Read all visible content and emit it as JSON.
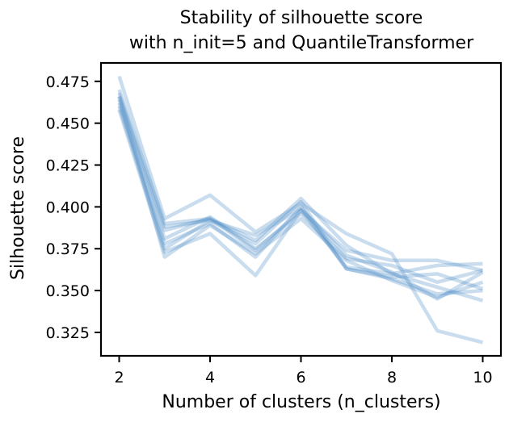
{
  "chart_data": {
    "type": "line",
    "title_lines": [
      "Stability of silhouette score",
      "with n_init=5 and QuantileTransformer"
    ],
    "xlabel": "Number of clusters (n_clusters)",
    "ylabel": "Silhouette score",
    "xlim": [
      1.6,
      10.4
    ],
    "ylim": [
      0.311,
      0.486
    ],
    "xticks": [
      2,
      4,
      6,
      8,
      10
    ],
    "yticks": [
      0.325,
      0.35,
      0.375,
      0.4,
      0.425,
      0.45,
      0.475
    ],
    "ytick_labels": [
      "0.325",
      "0.350",
      "0.375",
      "0.400",
      "0.425",
      "0.450",
      "0.475"
    ],
    "xtick_labels": [
      "2",
      "4",
      "6",
      "8",
      "10"
    ],
    "grid": false,
    "legend": "none",
    "line_color": "#4f8fc6",
    "line_opacity": 0.3,
    "x": [
      2,
      3,
      4,
      5,
      6,
      7,
      8,
      9,
      10
    ],
    "series": [
      {
        "values": [
          0.478,
          0.393,
          0.407,
          0.385,
          0.402,
          0.384,
          0.372,
          0.326,
          0.319
        ]
      },
      {
        "values": [
          0.47,
          0.39,
          0.393,
          0.38,
          0.405,
          0.377,
          0.36,
          0.365,
          0.366
        ]
      },
      {
        "values": [
          0.468,
          0.388,
          0.392,
          0.378,
          0.403,
          0.363,
          0.358,
          0.36,
          0.351
        ]
      },
      {
        "values": [
          0.466,
          0.386,
          0.393,
          0.374,
          0.398,
          0.374,
          0.368,
          0.368,
          0.362
        ]
      },
      {
        "values": [
          0.464,
          0.381,
          0.394,
          0.375,
          0.396,
          0.369,
          0.365,
          0.355,
          0.362
        ]
      },
      {
        "values": [
          0.462,
          0.378,
          0.39,
          0.37,
          0.4,
          0.363,
          0.357,
          0.348,
          0.35
        ]
      },
      {
        "values": [
          0.46,
          0.375,
          0.392,
          0.383,
          0.399,
          0.371,
          0.361,
          0.345,
          0.361
        ]
      },
      {
        "values": [
          0.458,
          0.373,
          0.384,
          0.359,
          0.398,
          0.364,
          0.36,
          0.352,
          0.344
        ]
      },
      {
        "values": [
          0.466,
          0.37,
          0.389,
          0.372,
          0.393,
          0.368,
          0.356,
          0.346,
          0.355
        ]
      }
    ]
  }
}
